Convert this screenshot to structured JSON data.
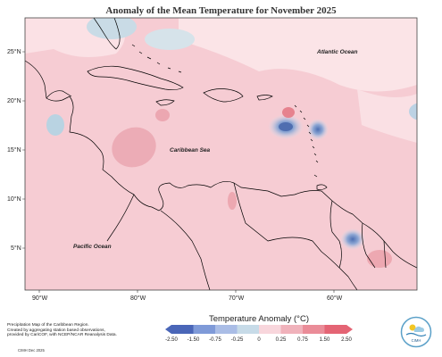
{
  "title": "Anomaly of the Mean Temperature for November 2025",
  "lat_labels": [
    "25°N",
    "20°N",
    "15°N",
    "10°N",
    "5°N"
  ],
  "lon_labels": [
    "90°W",
    "80°W",
    "70°W",
    "60°W"
  ],
  "oceans": {
    "atlantic": "Atlantic Ocean",
    "caribbean": "Caribbean Sea",
    "pacific": "Pacific Ocean"
  },
  "legend": {
    "title": "Temperature Anomaly (°C)",
    "ticks": [
      "-2.50",
      "-1.50",
      "-0.75",
      "-0.25",
      "0",
      "0.25",
      "0.75",
      "1.50",
      "2.50"
    ],
    "colors": [
      "#4a66b8",
      "#7f9ad8",
      "#aabde6",
      "#c7dbe8",
      "#ffffff",
      "#f8d6dc",
      "#f0b2bb",
      "#ea8c98",
      "#e46474"
    ]
  },
  "credit": {
    "line1": "Precipitation Map of the Caribbean Region.",
    "line2": "Created by aggregating station based observations,",
    "line3": "provided by CariCOF, with NCEP/NCAR Reanalysis Data.",
    "date": "CIMH Dec 2025"
  },
  "logo_text": "CIMH",
  "colors": {
    "base_anomaly": "#f7cdd4",
    "land_outline": "#000000",
    "cold": "#7b97c9",
    "warm": "#e58f9a"
  }
}
